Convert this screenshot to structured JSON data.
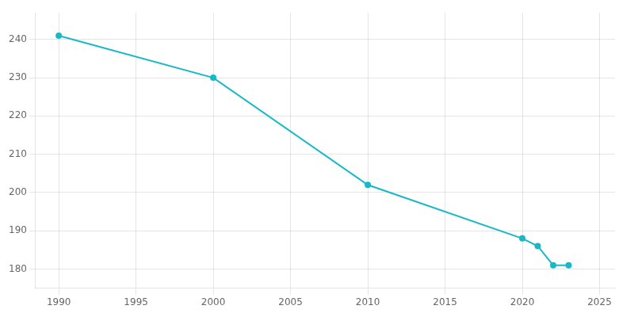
{
  "chart_data": {
    "type": "line",
    "x": [
      1990,
      2000,
      2010,
      2020,
      2021,
      2022,
      2023
    ],
    "values": [
      241,
      230,
      202,
      188,
      186,
      181,
      181
    ],
    "color": "#17b8c8",
    "marker": "circle",
    "xlim": [
      1988.5,
      2026
    ],
    "ylim": [
      175,
      247
    ],
    "xticks": [
      1990,
      1995,
      2000,
      2005,
      2010,
      2015,
      2020,
      2025
    ],
    "yticks": [
      180,
      190,
      200,
      210,
      220,
      230,
      240
    ],
    "grid": true
  }
}
